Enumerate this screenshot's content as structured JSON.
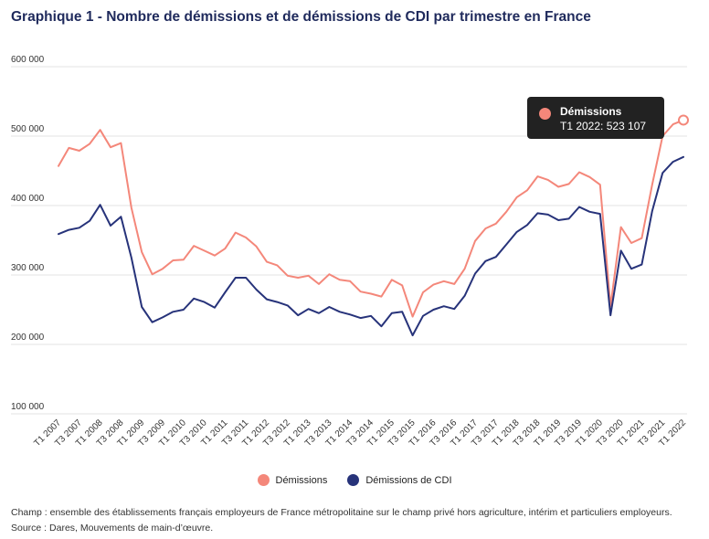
{
  "chart_data": {
    "type": "line",
    "title": "Graphique 1 - Nombre de démissions et de démissions de CDI par trimestre en France",
    "xlabel": "",
    "ylabel": "",
    "ylim": [
      100000,
      600000
    ],
    "yticks": [
      "100 000",
      "200 000",
      "300 000",
      "400 000",
      "500 000",
      "600 000"
    ],
    "ytick_values": [
      100000,
      200000,
      300000,
      400000,
      500000,
      600000
    ],
    "grid": true,
    "legend_position": "bottom",
    "categories": [
      "T1 2007",
      "T2 2007",
      "T3 2007",
      "T4 2007",
      "T1 2008",
      "T2 2008",
      "T3 2008",
      "T4 2008",
      "T1 2009",
      "T2 2009",
      "T3 2009",
      "T4 2009",
      "T1 2010",
      "T2 2010",
      "T3 2010",
      "T4 2010",
      "T1 2011",
      "T2 2011",
      "T3 2011",
      "T4 2011",
      "T1 2012",
      "T2 2012",
      "T3 2012",
      "T4 2012",
      "T1 2013",
      "T2 2013",
      "T3 2013",
      "T4 2013",
      "T1 2014",
      "T2 2014",
      "T3 2014",
      "T4 2014",
      "T1 2015",
      "T2 2015",
      "T3 2015",
      "T4 2015",
      "T1 2016",
      "T2 2016",
      "T3 2016",
      "T4 2016",
      "T1 2017",
      "T2 2017",
      "T3 2017",
      "T4 2017",
      "T1 2018",
      "T2 2018",
      "T3 2018",
      "T4 2018",
      "T1 2019",
      "T2 2019",
      "T3 2019",
      "T4 2019",
      "T1 2020",
      "T2 2020",
      "T3 2020",
      "T4 2020",
      "T1 2021",
      "T2 2021",
      "T3 2021",
      "T4 2021",
      "T1 2022"
    ],
    "x_tick_labels": [
      "T1 2007",
      "T3 2007",
      "T1 2008",
      "T3 2008",
      "T1 2009",
      "T3 2009",
      "T1 2010",
      "T3 2010",
      "T1 2011",
      "T3 2011",
      "T1 2012",
      "T3 2012",
      "T1 2013",
      "T3 2013",
      "T1 2014",
      "T3 2014",
      "T1 2015",
      "T3 2015",
      "T1 2016",
      "T3 2016",
      "T1 2017",
      "T3 2017",
      "T1 2018",
      "T3 2018",
      "T1 2019",
      "T3 2019",
      "T1 2020",
      "T3 2020",
      "T1 2021",
      "T3 2021",
      "T1 2022"
    ],
    "series": [
      {
        "name": "Démissions",
        "color": "#f4877a",
        "values": [
          457000,
          483000,
          479000,
          489000,
          509000,
          484000,
          490000,
          397000,
          333000,
          301000,
          309000,
          321000,
          322000,
          342000,
          335000,
          328000,
          338000,
          361000,
          354000,
          341000,
          319000,
          314000,
          299000,
          296000,
          299000,
          287000,
          301000,
          293000,
          291000,
          276000,
          273000,
          269000,
          293000,
          285000,
          240000,
          275000,
          286000,
          291000,
          287000,
          309000,
          349000,
          367000,
          374000,
          391000,
          412000,
          422000,
          442000,
          437000,
          427000,
          431000,
          448000,
          441000,
          430000,
          255000,
          369000,
          346000,
          353000,
          430000,
          500000,
          517000,
          523107
        ]
      },
      {
        "name": "Démissions de CDI",
        "color": "#27337a",
        "values": [
          359000,
          365000,
          368000,
          378000,
          401000,
          371000,
          384000,
          325000,
          254000,
          232000,
          239000,
          247000,
          250000,
          266000,
          261000,
          253000,
          275000,
          296000,
          296000,
          279000,
          265000,
          261000,
          256000,
          242000,
          251000,
          245000,
          254000,
          247000,
          243000,
          238000,
          241000,
          226000,
          245000,
          247000,
          213000,
          241000,
          250000,
          255000,
          251000,
          270000,
          302000,
          320000,
          326000,
          344000,
          362000,
          372000,
          389000,
          387000,
          379000,
          381000,
          398000,
          391000,
          388000,
          242000,
          335000,
          309000,
          315000,
          392000,
          447000,
          463000,
          470000
        ]
      }
    ]
  },
  "legend": {
    "items": [
      {
        "label": "Démissions",
        "color": "#f4877a"
      },
      {
        "label": "Démissions de CDI",
        "color": "#27337a"
      }
    ]
  },
  "tooltip": {
    "title": "Démissions",
    "value": "T1 2022: 523 107",
    "color": "#f4877a"
  },
  "footnotes": {
    "champ": "Champ : ensemble des établissements français employeurs de France métropolitaine sur le champ privé hors agriculture, intérim et particuliers employeurs.",
    "source": "Source : Dares, Mouvements de main-d’œuvre."
  }
}
